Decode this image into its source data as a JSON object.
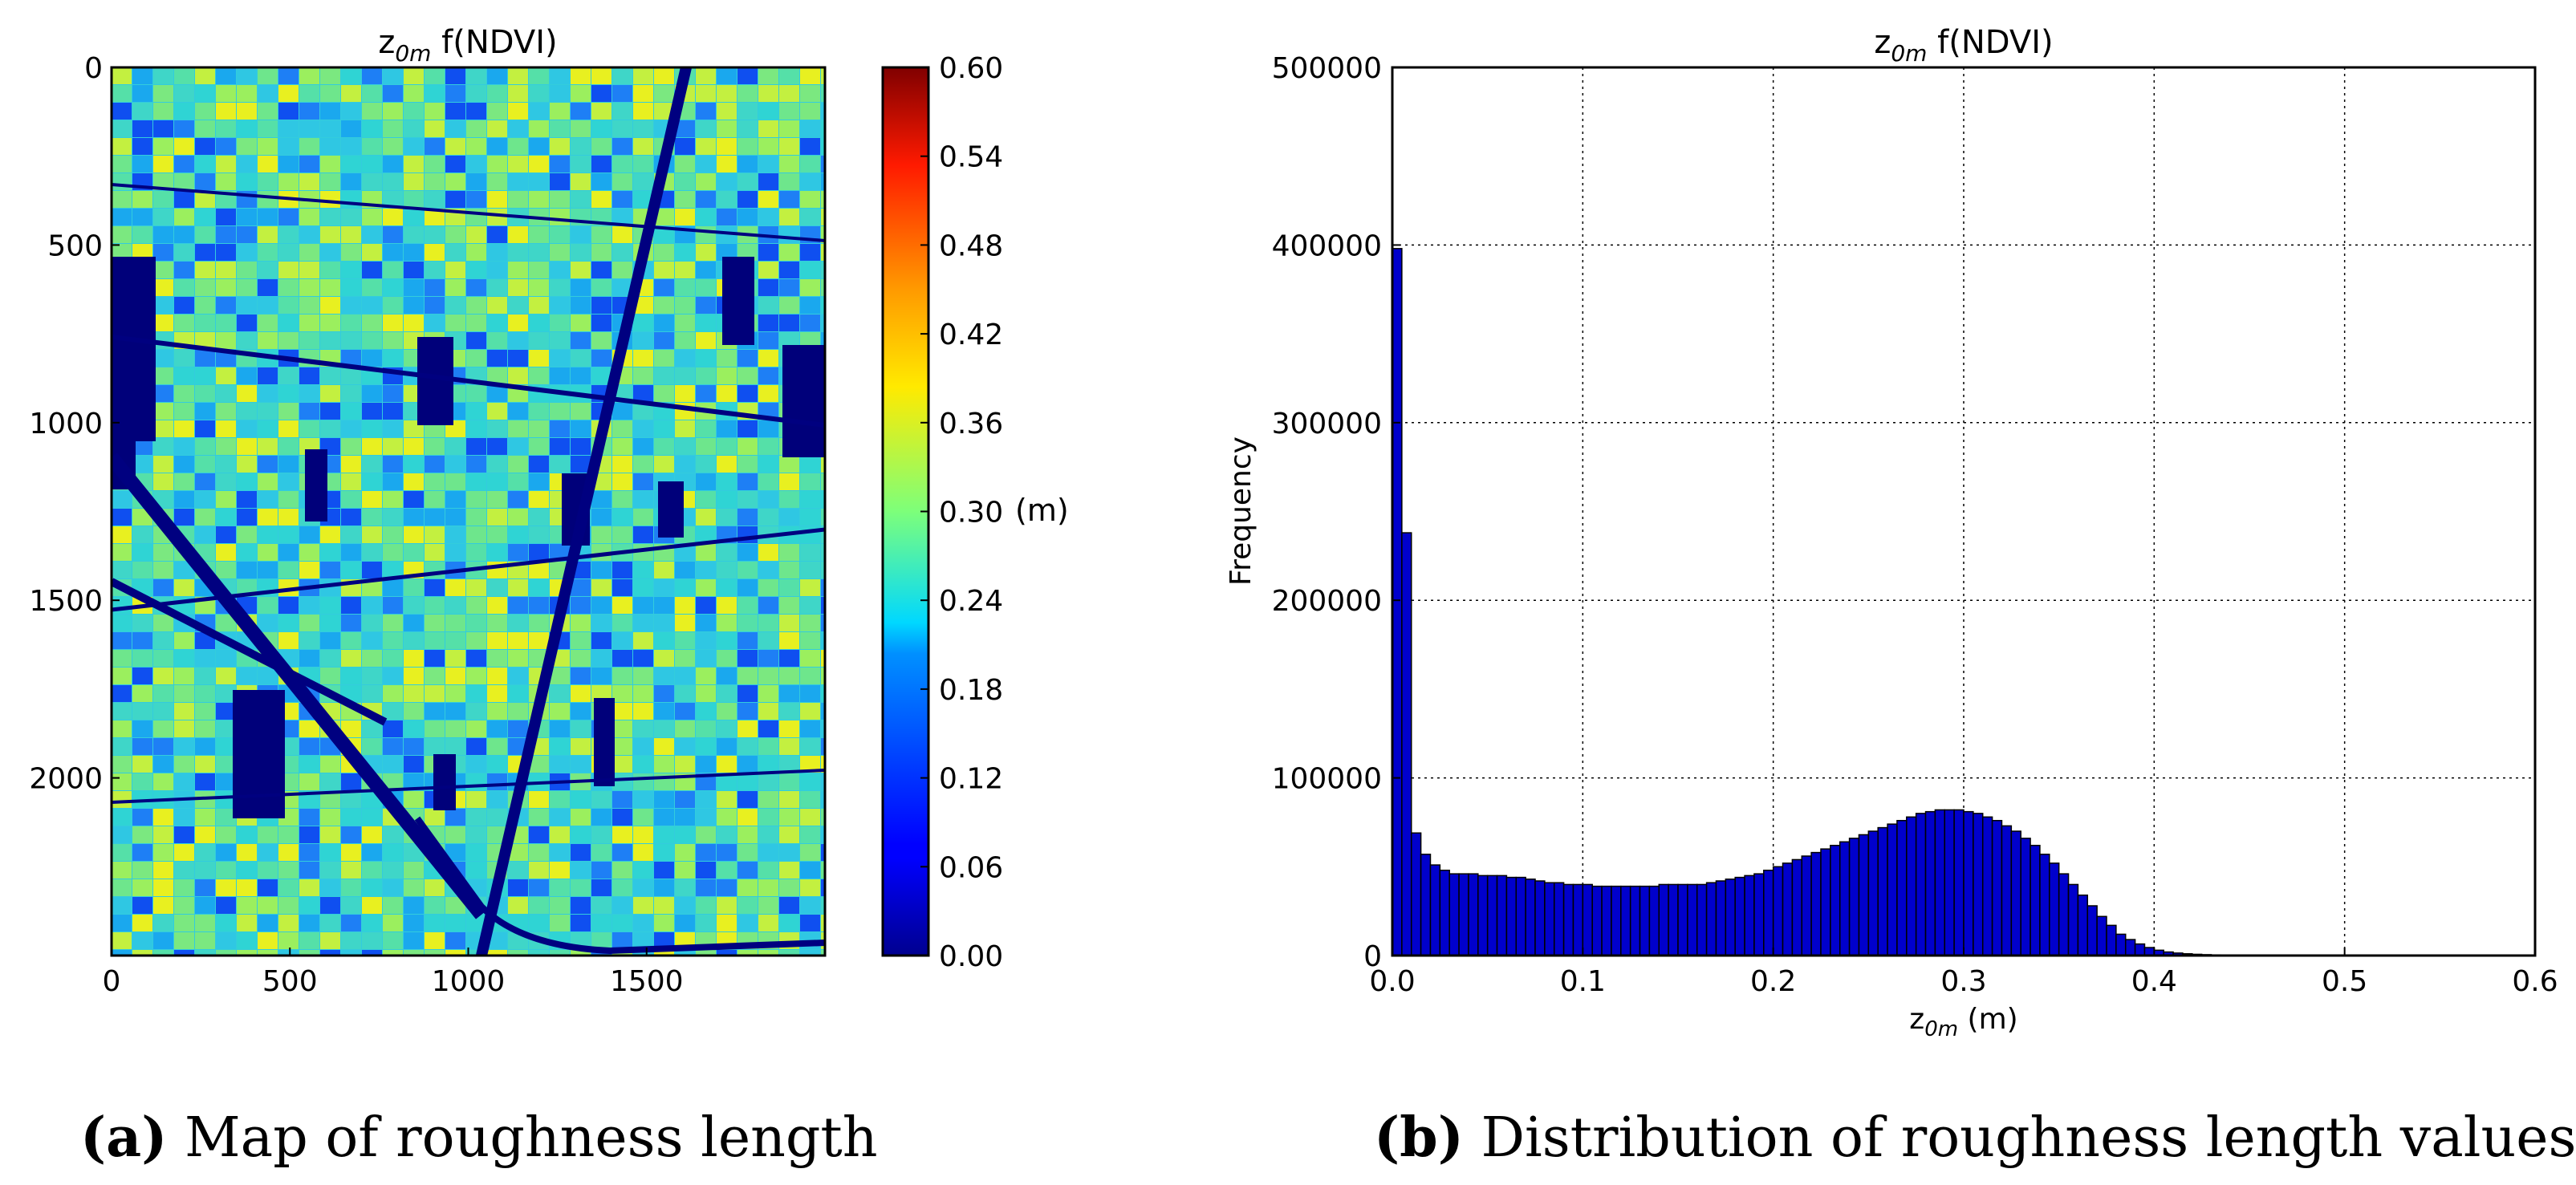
{
  "chart_data": [
    {
      "type": "heatmap",
      "title": "z0m f(NDVI)",
      "title_main": "z",
      "title_sub": "0m",
      "title_rest": " f(NDVI)",
      "x_ticks": [
        "0",
        "500",
        "1000",
        "1500"
      ],
      "x_tick_values": [
        0,
        500,
        1000,
        1500
      ],
      "y_ticks": [
        "0",
        "500",
        "1000",
        "1500",
        "2000"
      ],
      "y_tick_values": [
        0,
        500,
        1000,
        1500,
        2000
      ],
      "xlim": [
        0,
        2000
      ],
      "ylim": [
        2500,
        0
      ],
      "colorbar": {
        "label": "(m)",
        "ticks": [
          "0.00",
          "0.06",
          "0.12",
          "0.18",
          "0.24",
          "0.30",
          "0.36",
          "0.42",
          "0.48",
          "0.54",
          "0.60"
        ],
        "range": [
          0,
          0.6
        ],
        "colormap": "jet"
      },
      "caption_label": "(a)",
      "caption_text": " Map of roughness length"
    },
    {
      "type": "bar",
      "title": "z0m f(NDVI)",
      "title_main": "z",
      "title_sub": "0m",
      "title_rest": " f(NDVI)",
      "xlabel_main": "z",
      "xlabel_sub": "0m",
      "xlabel_rest": " (m)",
      "ylabel": "Frequency",
      "xlim": [
        0,
        0.6
      ],
      "ylim": [
        0,
        500000
      ],
      "grid": true,
      "bin_width": 0.005,
      "x_ticks": [
        "0.0",
        "0.1",
        "0.2",
        "0.3",
        "0.4",
        "0.5",
        "0.6"
      ],
      "x_tick_values": [
        0,
        0.1,
        0.2,
        0.3,
        0.4,
        0.5,
        0.6
      ],
      "y_ticks": [
        "0",
        "100000",
        "200000",
        "300000",
        "400000",
        "500000"
      ],
      "y_tick_values": [
        0,
        100000,
        200000,
        300000,
        400000,
        500000
      ],
      "bar_color": "#0000cc",
      "values": [
        398000,
        238000,
        69000,
        57000,
        51000,
        48000,
        46000,
        46000,
        46000,
        45000,
        45000,
        45000,
        44000,
        44000,
        43000,
        42000,
        41000,
        41000,
        40000,
        40000,
        40000,
        39000,
        39000,
        39000,
        39000,
        39000,
        39000,
        39000,
        40000,
        40000,
        40000,
        40000,
        40000,
        41000,
        42000,
        43000,
        44000,
        45000,
        46000,
        48000,
        50000,
        52000,
        54000,
        56000,
        58000,
        60000,
        62000,
        64000,
        66000,
        68000,
        70000,
        72000,
        74000,
        76000,
        78000,
        80000,
        81000,
        82000,
        82000,
        82000,
        81000,
        80000,
        78000,
        76000,
        73000,
        70000,
        66000,
        62000,
        57000,
        52000,
        46000,
        40000,
        34000,
        28000,
        22000,
        17000,
        12000,
        9000,
        6500,
        4500,
        3000,
        2000,
        1400,
        1000,
        700,
        500,
        350,
        250,
        150,
        80
      ],
      "caption_label": "(b)",
      "caption_text": " Distribution of roughness length values"
    }
  ]
}
